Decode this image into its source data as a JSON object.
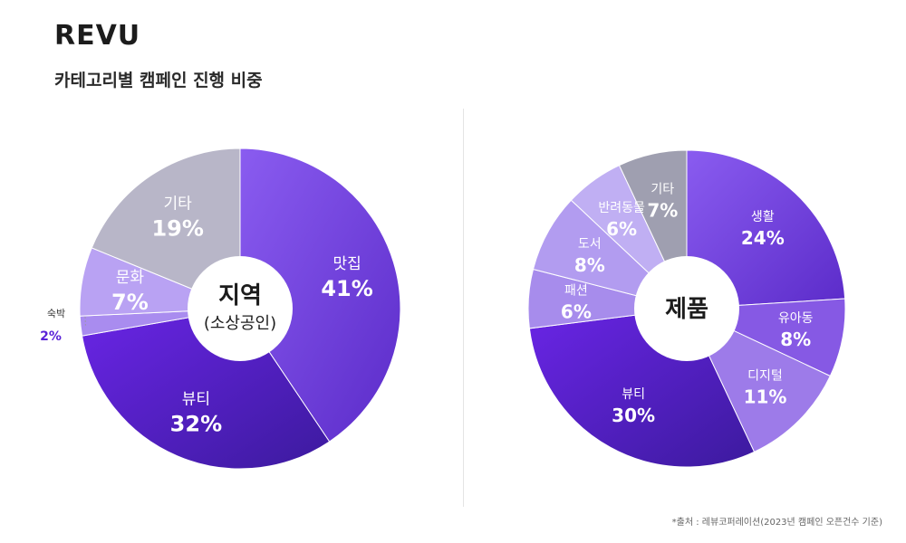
{
  "header": {
    "brand": "REVU",
    "subtitle": "카테고리별 캠페인 진행 비중"
  },
  "footer": {
    "source": "*출처 : 레뷰코퍼레이션(2023년 캠페인 오픈건수 기준)"
  },
  "chart_data": [
    {
      "type": "pie",
      "center_title": "지역",
      "center_subtitle": "(소상공인)",
      "slices": [
        {
          "label": "맛집",
          "value": 41,
          "display": "41%",
          "color": "#7b4de6"
        },
        {
          "label": "뷰티",
          "value": 32,
          "display": "32%",
          "color": "#5a22d8"
        },
        {
          "label": "숙박",
          "value": 2,
          "display": "2%",
          "color": "#a98cef"
        },
        {
          "label": "문화",
          "value": 7,
          "display": "7%",
          "color": "#b9a2f3"
        },
        {
          "label": "기타",
          "value": 19,
          "display": "19%",
          "color": "#b8b6c8"
        }
      ]
    },
    {
      "type": "pie",
      "center_title": "제품",
      "center_subtitle": "",
      "slices": [
        {
          "label": "생활",
          "value": 24,
          "display": "24%",
          "color": "#6d3be0"
        },
        {
          "label": "유아동",
          "value": 8,
          "display": "8%",
          "color": "#8659e4"
        },
        {
          "label": "디지털",
          "value": 11,
          "display": "11%",
          "color": "#9d7be9"
        },
        {
          "label": "뷰티",
          "value": 30,
          "display": "30%",
          "color": "#5a22d8"
        },
        {
          "label": "패션",
          "value": 6,
          "display": "6%",
          "color": "#a78cec"
        },
        {
          "label": "도서",
          "value": 8,
          "display": "8%",
          "color": "#b29cf0"
        },
        {
          "label": "반려동물",
          "value": 6,
          "display": "6%",
          "color": "#c0aff3"
        },
        {
          "label": "기타",
          "value": 7,
          "display": "7%",
          "color": "#9f9fb0"
        }
      ]
    }
  ]
}
